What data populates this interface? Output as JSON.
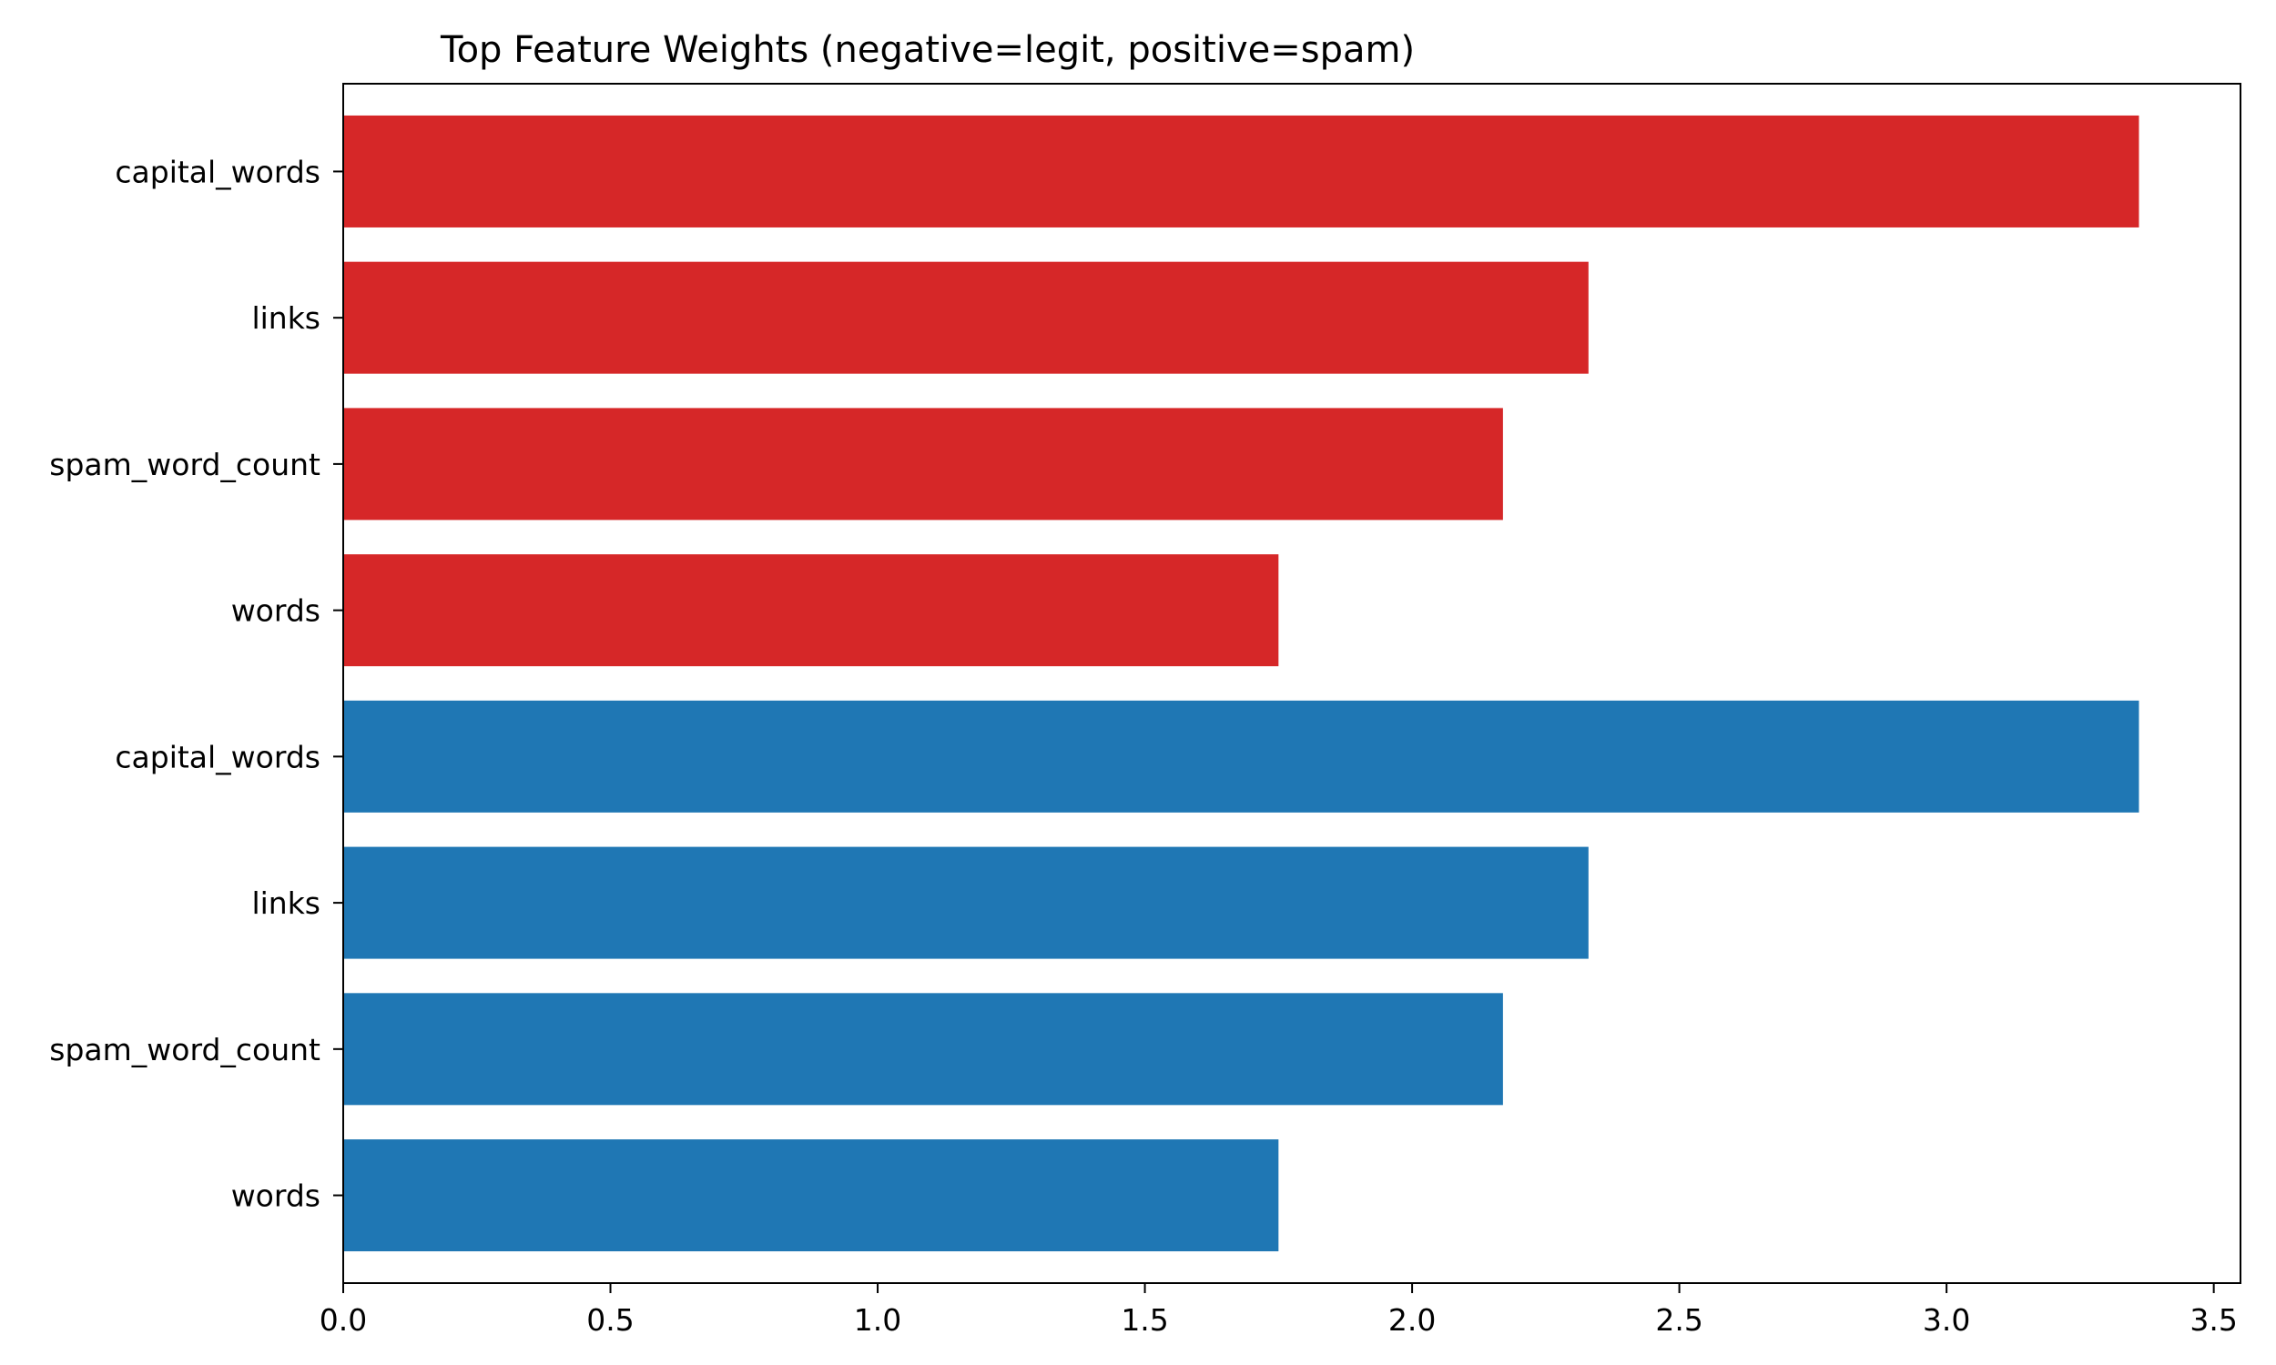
{
  "chart_data": {
    "type": "bar",
    "orientation": "horizontal",
    "title": "Top Feature Weights (negative=legit, positive=spam)",
    "xlabel": "",
    "ylabel": "",
    "xlim": [
      0,
      3.55
    ],
    "xticks": [
      0.0,
      0.5,
      1.0,
      1.5,
      2.0,
      2.5,
      3.0,
      3.5
    ],
    "xtick_labels": [
      "0.0",
      "0.5",
      "1.0",
      "1.5",
      "2.0",
      "2.5",
      "3.0",
      "3.5"
    ],
    "grid": false,
    "bars": [
      {
        "label": "capital_words",
        "value": 3.36,
        "color": "#d62728"
      },
      {
        "label": "links",
        "value": 2.33,
        "color": "#d62728"
      },
      {
        "label": "spam_word_count",
        "value": 2.17,
        "color": "#d62728"
      },
      {
        "label": "words",
        "value": 1.75,
        "color": "#d62728"
      },
      {
        "label": "capital_words",
        "value": 3.36,
        "color": "#1f77b4"
      },
      {
        "label": "links",
        "value": 2.33,
        "color": "#1f77b4"
      },
      {
        "label": "spam_word_count",
        "value": 2.17,
        "color": "#1f77b4"
      },
      {
        "label": "words",
        "value": 1.75,
        "color": "#1f77b4"
      }
    ]
  }
}
